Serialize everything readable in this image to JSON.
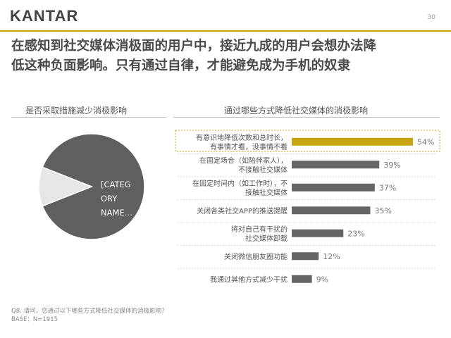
{
  "header": {
    "logo": "KANTAR",
    "page_number": "30"
  },
  "headline": {
    "line1": "在感知到社交媒体消极面的用户中，接近九成的用户会想办法降",
    "line2": "低这种负面影响。只有通过自律，才能避免成为手机的奴隶"
  },
  "left_panel": {
    "title": "是否采取措施减少消极影响",
    "pie_label_lines": [
      "[CATEG",
      "ORY",
      "NAME…"
    ]
  },
  "right_panel": {
    "title": "通过哪些方式降低社交媒体的消极影响"
  },
  "footnote": {
    "question": "Q8. 请问，您通过以下哪些方式降低社交媒体的消极影响？",
    "base": "BASE：N=1915"
  },
  "colors": {
    "accent": "#c8a415",
    "bar_gray": "#666666",
    "pie_dark": "#5f5f5f",
    "pie_light": "#e6e6e6"
  },
  "chart_data": [
    {
      "type": "pie",
      "title": "是否采取措施减少消极影响",
      "slices": [
        {
          "label": "[CATEGORY NAME]",
          "value": 88
        },
        {
          "label": "",
          "value": 12
        }
      ]
    },
    {
      "type": "bar",
      "orientation": "horizontal",
      "title": "通过哪些方式降低社交媒体的消极影响",
      "categories": [
        [
          "有意识地降低次数和总时长，",
          "有事情才看，没事情不看"
        ],
        [
          "在固定场合（如陪伴家人），",
          "不接触社交媒体"
        ],
        [
          "在固定时间内（如工作时），不",
          "接触社交媒体"
        ],
        [
          "关闭各类社交APP的推送提醒"
        ],
        [
          "将对自己有干扰的",
          "社交媒体卸载"
        ],
        [
          "关闭微信朋友圈功能"
        ],
        [
          "我通过其他方式减少干扰"
        ]
      ],
      "values": [
        54,
        39,
        37,
        35,
        23,
        12,
        9
      ],
      "value_labels": [
        "54%",
        "39%",
        "37%",
        "35%",
        "23%",
        "12%",
        "9%"
      ],
      "highlight_index": 0,
      "xlim": [
        0,
        54
      ]
    }
  ]
}
